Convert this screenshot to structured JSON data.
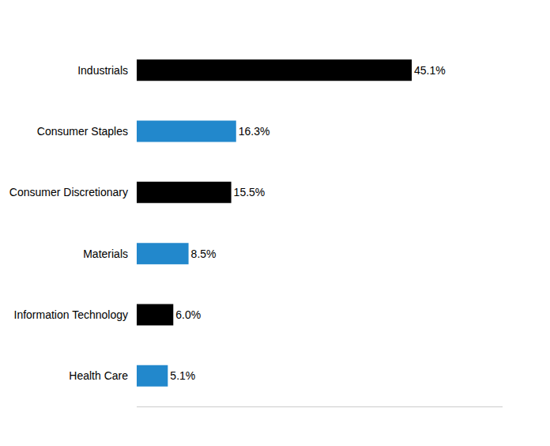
{
  "chart_data": {
    "type": "bar",
    "orientation": "horizontal",
    "categories": [
      "Industrials",
      "Consumer Staples",
      "Consumer Discretionary",
      "Materials",
      "Information Technology",
      "Health Care"
    ],
    "values": [
      45.1,
      16.3,
      15.5,
      8.5,
      6.0,
      5.1
    ],
    "value_labels": [
      "45.1%",
      "16.3%",
      "15.5%",
      "8.5%",
      "6.0%",
      "5.1%"
    ],
    "colors": [
      "#000000",
      "#2288cc",
      "#000000",
      "#2288cc",
      "#000000",
      "#2288cc"
    ],
    "xlim": [
      0,
      60
    ],
    "grid": false,
    "data_labels": true,
    "tick_labels": "y"
  }
}
